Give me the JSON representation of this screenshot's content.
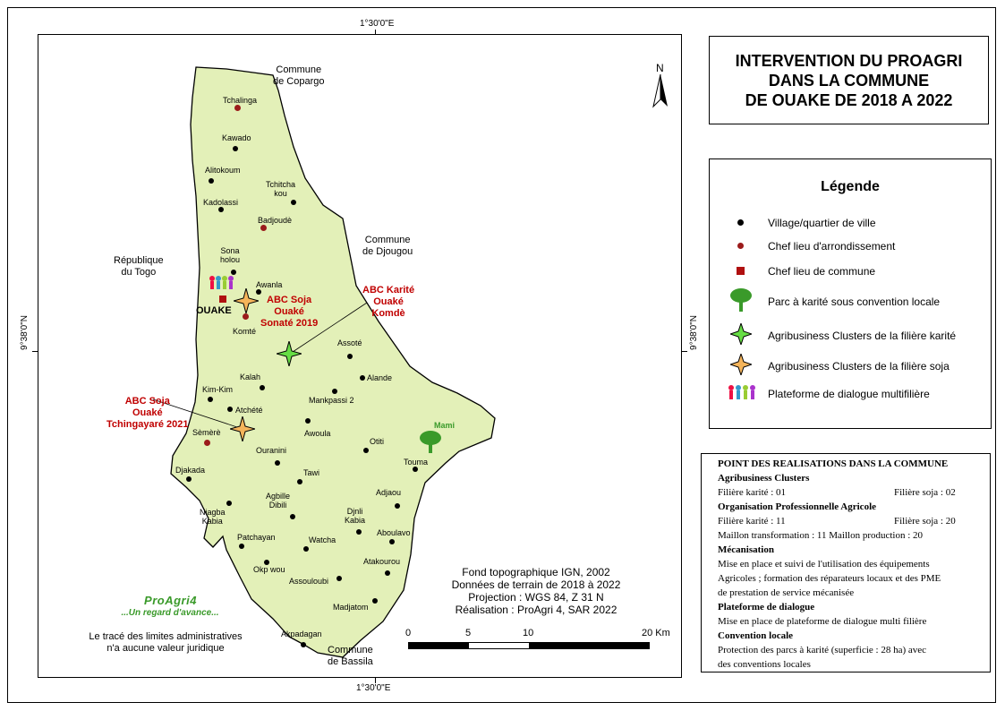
{
  "coords": {
    "lon_top": "1°30'0\"E",
    "lon_bottom": "1°30'0\"E",
    "lat_left": "9°38'0\"N",
    "lat_right": "9°38'0\"N"
  },
  "north": "N",
  "title": {
    "text": "INTERVENTION DU PROAGRI\nDANS LA COMMUNE\nDE OUAKE DE 2018 A 2022"
  },
  "regions": {
    "copargo": "Commune\nde Copargo",
    "togo": "République\ndu Togo",
    "djougou": "Commune\nde Djougou",
    "bassila": "Commune\nde Bassila"
  },
  "villages": [
    {
      "name": "Kawado"
    },
    {
      "name": "Alitokoum"
    },
    {
      "name": "Tchitcha\nkou"
    },
    {
      "name": "Kadolassi"
    },
    {
      "name": "Sona\nholou"
    },
    {
      "name": "Awanla"
    },
    {
      "name": "Assoté"
    },
    {
      "name": "Alande"
    },
    {
      "name": "Kalah"
    },
    {
      "name": "Kim-Kim"
    },
    {
      "name": "Mankpassi 2"
    },
    {
      "name": "Atchété"
    },
    {
      "name": "Awoula"
    },
    {
      "name": "Otiti"
    },
    {
      "name": "Ouranini"
    },
    {
      "name": "Touma"
    },
    {
      "name": "Djakada"
    },
    {
      "name": "Tawi"
    },
    {
      "name": "Adjaou"
    },
    {
      "name": "Agbille\nDibili"
    },
    {
      "name": "Niagba\nKabia"
    },
    {
      "name": "Djnli\nKabia"
    },
    {
      "name": "Aboulavo"
    },
    {
      "name": "Patchayan"
    },
    {
      "name": "Watcha"
    },
    {
      "name": "Atakourou"
    },
    {
      "name": "Okp wou"
    },
    {
      "name": "Assouloubi"
    },
    {
      "name": "Madjatom"
    },
    {
      "name": "Akpadagan"
    }
  ],
  "chief_places": [
    {
      "name": "Tchalinga"
    },
    {
      "name": "Badjoudè"
    },
    {
      "name": "Komté"
    },
    {
      "name": "Sèmèrè"
    }
  ],
  "commune_capital": {
    "name": "OUAKE"
  },
  "parc": {
    "name": "Mami"
  },
  "clusters": {
    "soja1": "ABC Soja\nOuaké\nSonaté 2019",
    "karite": "ABC Karité\nOuaké\nKomdè",
    "soja2": "ABC Soja\nOuaké\nTchingayaré 2021"
  },
  "logo": {
    "brand": "ProAgri4",
    "tagline": "...Un regard d'avance..."
  },
  "disclaimer": "Le tracé des limites administratives\nn'a aucune valeur juridique",
  "credits": [
    "Fond topographique IGN, 2002",
    "Données de terrain de 2018 à 2022",
    "Projection : WGS 84, Z 31 N",
    "Réalisation : ProAgri 4, SAR 2022"
  ],
  "scale": {
    "labels": [
      "0",
      "5",
      "10",
      "20 Km"
    ]
  },
  "legend": {
    "title": "Légende",
    "items": [
      {
        "label": "Village/quartier de ville",
        "icon": "black-dot-icon"
      },
      {
        "label": "Chef lieu d'arrondissement",
        "icon": "red-dot-icon"
      },
      {
        "label": "Chef lieu de commune",
        "icon": "red-square-icon"
      },
      {
        "label": "Parc à karité sous convention locale",
        "icon": "tree-icon"
      },
      {
        "label": "Agribusiness Clusters de la filière karité",
        "icon": "green-star-icon"
      },
      {
        "label": "Agribusiness Clusters de la filière soja",
        "icon": "orange-star-icon"
      },
      {
        "label": "Plateforme de dialogue multifilière",
        "icon": "people-group-icon"
      }
    ]
  },
  "colors": {
    "commune_fill": "#e3f0b8",
    "chief_red": "#9b1b1b",
    "label_red": "#c00000",
    "karite_star": "#66dd44",
    "soja_star": "#f5b45a",
    "parc_green": "#3a9a2a"
  },
  "points": {
    "title": "POINT DES REALISATIONS DANS LA COMMUNE",
    "agri_hdr": "Agribusiness Clusters",
    "agri_karite": "Filière karité : 01",
    "agri_soja": "Filière soja : 02",
    "op_hdr": "Organisation Professionnelle Agricole",
    "op_karite": "Filière karité : 11",
    "op_soja": "Filière soja : 20",
    "op_maillons": "Maillon transformation : 11   Maillon production : 20",
    "meca_hdr": "Mécanisation",
    "meca_text1": "Mise en place et suivi de l'utilisation des équipements",
    "meca_text2": "Agricoles ; formation des réparateurs locaux et des PME",
    "meca_text3": "de prestation de service mécanisée",
    "plat_hdr": "Plateforme de dialogue",
    "plat_text": "Mise en place de plateforme de dialogue multi filière",
    "conv_hdr": "Convention locale",
    "conv_text1": "Protection des parcs à karité (superficie : 28 ha) avec",
    "conv_text2": "des conventions locales"
  }
}
